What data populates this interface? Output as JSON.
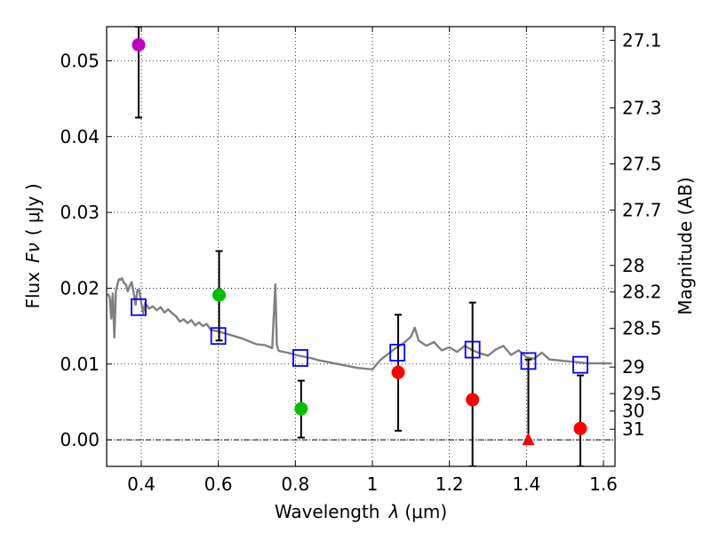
{
  "chart_data": {
    "type": "scatter",
    "xlabel": "Wavelength",
    "xlabel_symbol": "λ",
    "xlabel_unit": "(μm)",
    "ylabel": "Flux",
    "ylabel_symbol": "Fν",
    "ylabel_unit": "( μJy )",
    "ylabel_right": "Magnitude (AB)",
    "xlim": [
      0.31,
      1.63
    ],
    "ylim": [
      -0.0035,
      0.0545
    ],
    "grid": true,
    "xticks": [
      0.4,
      0.6,
      0.8,
      1.0,
      1.2,
      1.4,
      1.6
    ],
    "xtick_labels": [
      "0.4",
      "0.6",
      "0.8",
      "1",
      "1.2",
      "1.4",
      "1.6"
    ],
    "yticks": [
      0.0,
      0.01,
      0.02,
      0.03,
      0.04,
      0.05
    ],
    "ytick_labels": [
      "0.00",
      "0.01",
      "0.02",
      "0.03",
      "0.04",
      "0.05"
    ],
    "right_ticks": [
      {
        "label": "27.1",
        "flux": 0.0527
      },
      {
        "label": "27.3",
        "flux": 0.0438
      },
      {
        "label": "27.5",
        "flux": 0.0364
      },
      {
        "label": "27.7",
        "flux": 0.0303
      },
      {
        "label": "28",
        "flux": 0.023
      },
      {
        "label": "28.2",
        "flux": 0.0195
      },
      {
        "label": "28.5",
        "flux": 0.0147
      },
      {
        "label": "29",
        "flux": 0.0096
      },
      {
        "label": "29.5",
        "flux": 0.0061
      },
      {
        "label": "30",
        "flux": 0.0038
      },
      {
        "label": "31",
        "flux": 0.0014
      }
    ],
    "series": [
      {
        "name": "model SED",
        "kind": "line",
        "color": "#808080",
        "x": [
          0.313,
          0.318,
          0.322,
          0.326,
          0.33,
          0.334,
          0.338,
          0.342,
          0.346,
          0.35,
          0.355,
          0.36,
          0.365,
          0.37,
          0.375,
          0.38,
          0.385,
          0.39,
          0.395,
          0.4,
          0.405,
          0.41,
          0.42,
          0.43,
          0.44,
          0.45,
          0.46,
          0.47,
          0.48,
          0.49,
          0.5,
          0.51,
          0.52,
          0.53,
          0.54,
          0.55,
          0.56,
          0.57,
          0.58,
          0.6,
          0.62,
          0.64,
          0.66,
          0.68,
          0.7,
          0.72,
          0.74,
          0.748,
          0.752,
          0.756,
          0.76,
          0.78,
          0.8,
          0.82,
          0.84,
          0.86,
          0.88,
          0.9,
          0.92,
          0.94,
          0.96,
          0.98,
          1.0,
          1.02,
          1.04,
          1.06,
          1.08,
          1.1,
          1.11,
          1.12,
          1.14,
          1.16,
          1.18,
          1.2,
          1.22,
          1.24,
          1.26,
          1.28,
          1.3,
          1.32,
          1.34,
          1.36,
          1.38,
          1.4,
          1.42,
          1.44,
          1.46,
          1.48,
          1.5,
          1.52,
          1.54,
          1.56,
          1.58,
          1.6,
          1.62
        ],
        "y": [
          0.0193,
          0.0188,
          0.016,
          0.0193,
          0.0135,
          0.0196,
          0.0205,
          0.0212,
          0.0211,
          0.0213,
          0.0207,
          0.0205,
          0.0196,
          0.0203,
          0.0208,
          0.0195,
          0.0178,
          0.0198,
          0.0197,
          0.018,
          0.0167,
          0.0181,
          0.0173,
          0.0176,
          0.0171,
          0.0175,
          0.0168,
          0.0172,
          0.0167,
          0.0163,
          0.0156,
          0.0159,
          0.0154,
          0.0158,
          0.0151,
          0.0155,
          0.015,
          0.0153,
          0.0145,
          0.0143,
          0.014,
          0.0137,
          0.0134,
          0.013,
          0.0126,
          0.0125,
          0.0121,
          0.0205,
          0.0125,
          0.0118,
          0.0117,
          0.0115,
          0.0112,
          0.011,
          0.0108,
          0.0105,
          0.0103,
          0.0101,
          0.0099,
          0.0097,
          0.0095,
          0.0094,
          0.0093,
          0.0105,
          0.0113,
          0.0121,
          0.0127,
          0.0136,
          0.0148,
          0.0131,
          0.0124,
          0.0129,
          0.0118,
          0.0122,
          0.0116,
          0.0124,
          0.0118,
          0.0114,
          0.0111,
          0.0119,
          0.0124,
          0.0112,
          0.0118,
          0.0109,
          0.0107,
          0.0115,
          0.0106,
          0.0105,
          0.0104,
          0.0103,
          0.0102,
          0.0101,
          0.0101,
          0.0101,
          0.0101
        ]
      },
      {
        "name": "observed flux",
        "kind": "points",
        "points": [
          {
            "x": 0.393,
            "y": 0.0521,
            "err_low": 0.0425,
            "err_high": 0.0545,
            "color": "#bf00bf"
          },
          {
            "x": 0.602,
            "y": 0.0191,
            "err_low": 0.0131,
            "err_high": 0.0249,
            "color": "#00bf00"
          },
          {
            "x": 0.815,
            "y": 0.0041,
            "err_low": 0.0003,
            "err_high": 0.0078,
            "color": "#00bf00"
          },
          {
            "x": 1.067,
            "y": 0.0089,
            "err_low": 0.0012,
            "err_high": 0.0165,
            "color": "#ff0000"
          },
          {
            "x": 1.26,
            "y": 0.0053,
            "err_low": -0.0035,
            "err_high": 0.0181,
            "color": "#ff0000"
          },
          {
            "x": 1.54,
            "y": 0.0015,
            "err_low": -0.0035,
            "err_high": 0.0085,
            "color": "#ff0000"
          }
        ]
      },
      {
        "name": "upper limit",
        "kind": "triangle",
        "points": [
          {
            "x": 1.405,
            "y": 0.0,
            "err_low": 0.0,
            "err_high": 0.0106,
            "color": "#ff0000"
          }
        ]
      },
      {
        "name": "model band flux",
        "kind": "squares",
        "color": "#0000ff",
        "x": [
          0.393,
          0.6,
          0.813,
          1.065,
          1.26,
          1.405,
          1.54
        ],
        "y": [
          0.0175,
          0.0137,
          0.0108,
          0.0115,
          0.0119,
          0.0104,
          0.0099
        ]
      }
    ]
  }
}
